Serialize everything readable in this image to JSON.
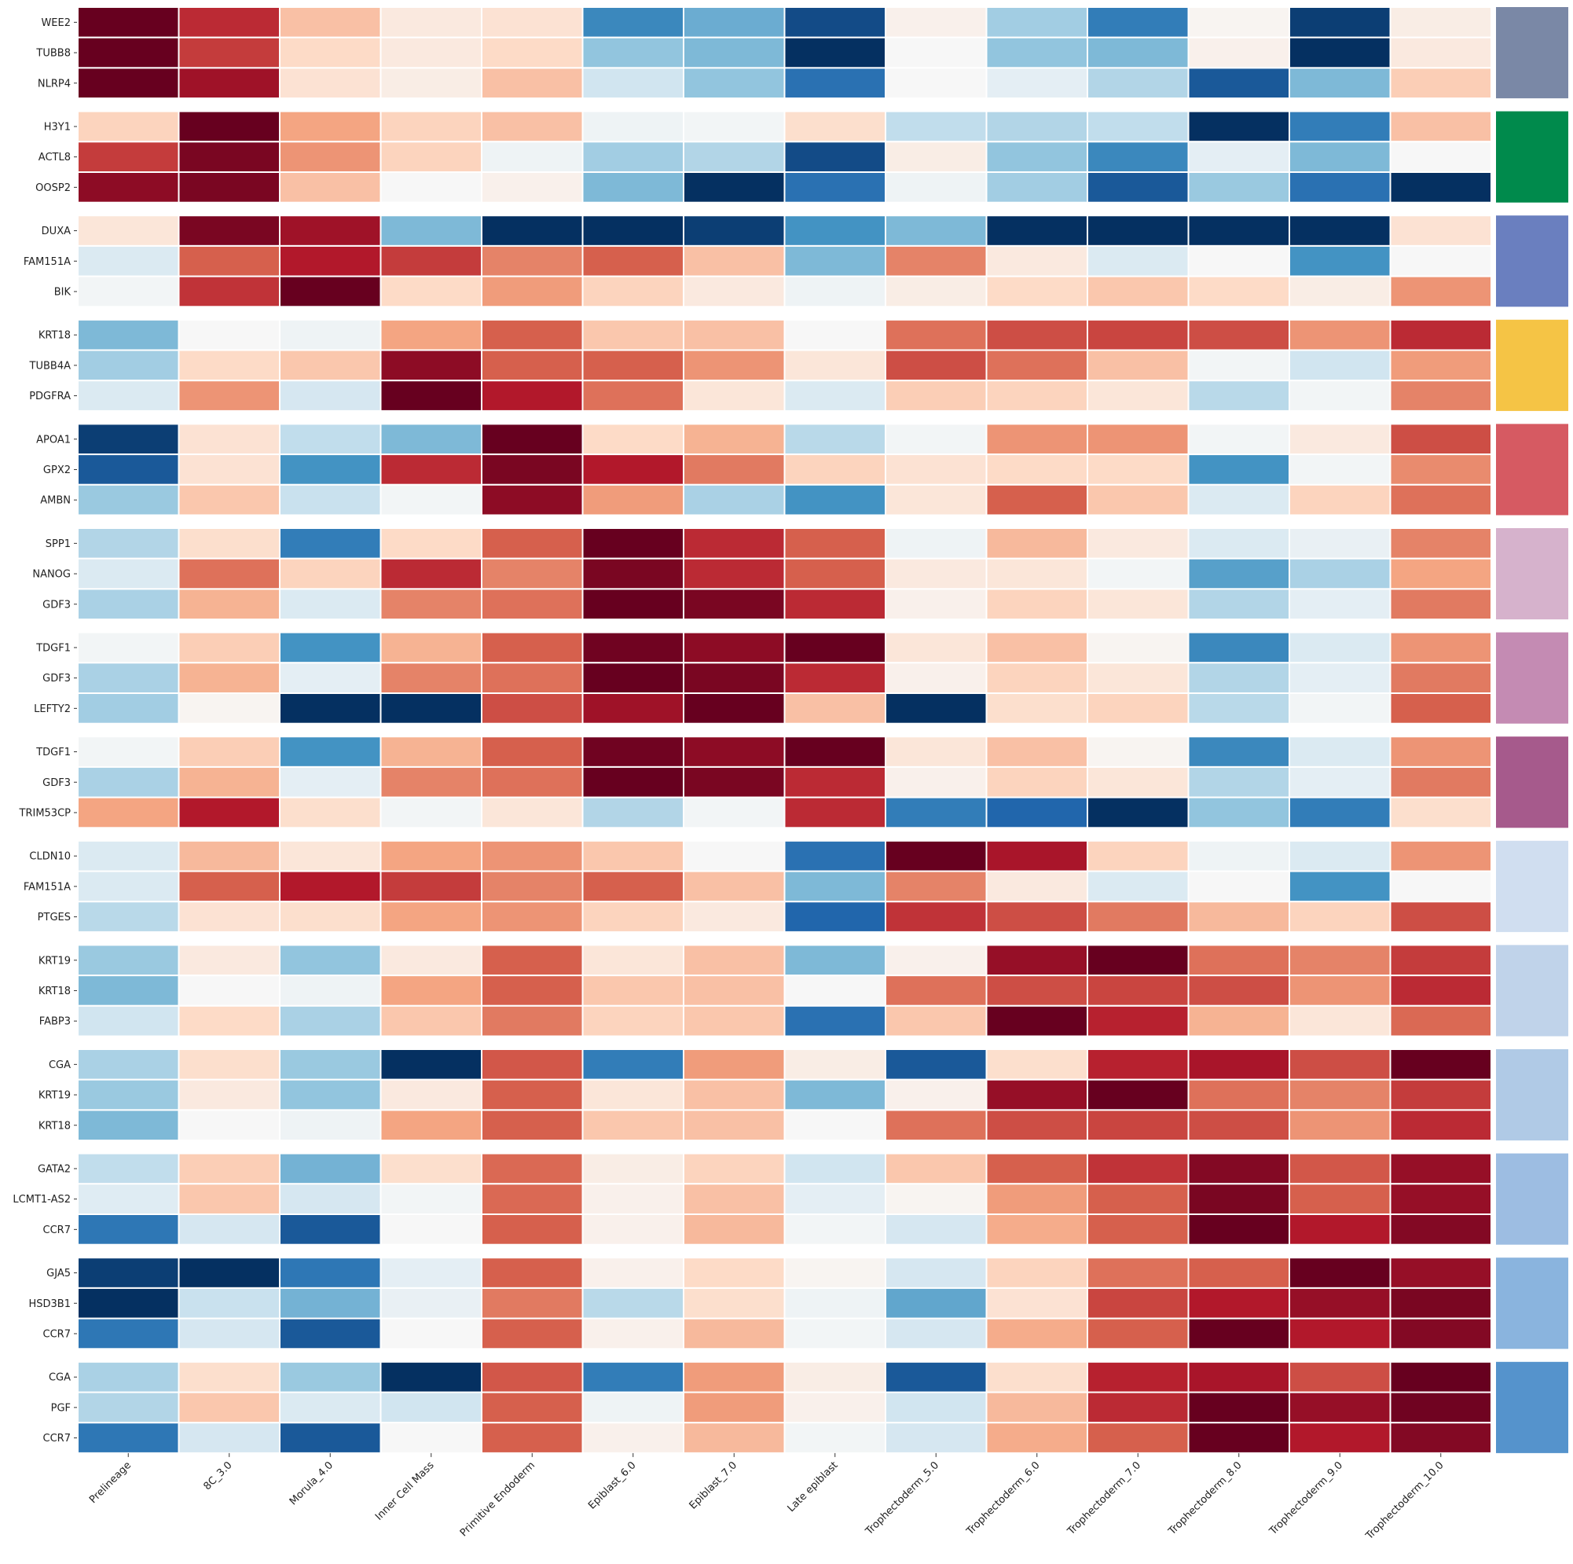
{
  "chart_data": {
    "type": "heatmap",
    "title": "",
    "colormap": "RdBu_r",
    "value_range": [
      -2,
      2
    ],
    "columns": [
      "Prelineage",
      "8C_3.0",
      "Morula_4.0",
      "Inner Cell Mass",
      "Primitive Endoderm",
      "Epiblast_6.0",
      "Epiblast_7.0",
      "Late epiblast",
      "Trophectoderm_5.0",
      "Trophectoderm_6.0",
      "Trophectoderm_7.0",
      "Trophectoderm_8.0",
      "Trophectoderm_9.0",
      "Trophectoderm_10.0"
    ],
    "groups": [
      {
        "color": "#7a88a6",
        "genes": [
          "WEE2",
          "TUBB8",
          "NLRP4"
        ],
        "values": [
          [
            2.0,
            1.5,
            0.6,
            0.2,
            0.3,
            -1.3,
            -1.0,
            -1.8,
            0.1,
            -0.7,
            -1.4,
            0.05,
            -1.9,
            0.15
          ],
          [
            2.0,
            1.4,
            0.4,
            0.2,
            0.4,
            -0.8,
            -0.9,
            -2.0,
            0.0,
            -0.8,
            -0.9,
            0.1,
            -2.0,
            0.2
          ],
          [
            2.0,
            1.7,
            0.3,
            0.15,
            0.6,
            -0.4,
            -0.8,
            -1.5,
            0.0,
            -0.2,
            -0.6,
            -1.7,
            -0.9,
            0.5
          ]
        ]
      },
      {
        "color": "#008a4c",
        "genes": [
          "H3Y1",
          "ACTL8",
          "OOSP2"
        ],
        "values": [
          [
            0.45,
            2.0,
            0.8,
            0.45,
            0.6,
            -0.1,
            -0.05,
            0.35,
            -0.5,
            -0.6,
            -0.5,
            -2.0,
            -1.4,
            0.6
          ],
          [
            1.4,
            1.9,
            0.9,
            0.45,
            -0.1,
            -0.7,
            -0.6,
            -1.8,
            0.15,
            -0.8,
            -1.3,
            -0.2,
            -0.9,
            0.0
          ],
          [
            1.8,
            1.9,
            0.6,
            0.0,
            0.1,
            -0.9,
            -2.0,
            -1.5,
            -0.1,
            -0.7,
            -1.7,
            -0.75,
            -1.5,
            -2.0
          ]
        ]
      },
      {
        "color": "#6a7fbf",
        "genes": [
          "DUXA",
          "FAM151A",
          "BIK"
        ],
        "values": [
          [
            0.25,
            1.9,
            1.7,
            -0.9,
            -2.0,
            -2.0,
            -1.9,
            -1.2,
            -0.9,
            -2.0,
            -2.0,
            -2.0,
            -2.0,
            0.3
          ],
          [
            -0.3,
            1.2,
            1.6,
            1.4,
            1.0,
            1.2,
            0.6,
            -0.9,
            1.0,
            0.2,
            -0.3,
            0.0,
            -1.2,
            0.0
          ],
          [
            -0.05,
            1.45,
            2.0,
            0.4,
            0.85,
            0.45,
            0.2,
            -0.1,
            0.15,
            0.4,
            0.55,
            0.4,
            0.15,
            0.9
          ]
        ]
      },
      {
        "color": "#f5c445",
        "genes": [
          "KRT18",
          "TUBB4A",
          "PDGFRA"
        ],
        "values": [
          [
            -0.9,
            0.0,
            -0.1,
            0.8,
            1.2,
            0.55,
            0.6,
            0.0,
            1.1,
            1.3,
            1.35,
            1.3,
            0.9,
            1.5
          ],
          [
            -0.7,
            0.4,
            0.55,
            1.8,
            1.2,
            1.2,
            0.9,
            0.25,
            1.3,
            1.1,
            0.6,
            -0.05,
            -0.4,
            0.85
          ],
          [
            -0.3,
            0.9,
            -0.35,
            2.0,
            1.6,
            1.1,
            0.25,
            -0.3,
            0.5,
            0.45,
            0.25,
            -0.55,
            -0.05,
            1.0
          ]
        ]
      },
      {
        "color": "#d65a62",
        "genes": [
          "APOA1",
          "GPX2",
          "AMBN"
        ],
        "values": [
          [
            -1.9,
            0.3,
            -0.5,
            -0.9,
            2.0,
            0.4,
            0.7,
            -0.55,
            -0.05,
            0.9,
            0.9,
            -0.05,
            0.2,
            1.3
          ],
          [
            -1.7,
            0.3,
            -1.2,
            1.5,
            1.9,
            1.6,
            1.05,
            0.45,
            0.3,
            0.4,
            0.4,
            -1.2,
            -0.05,
            0.95
          ],
          [
            -0.75,
            0.55,
            -0.45,
            -0.05,
            1.8,
            0.85,
            -0.65,
            -1.2,
            0.25,
            1.2,
            0.55,
            -0.3,
            0.45,
            1.1
          ]
        ]
      },
      {
        "color": "#d6b2cc",
        "genes": [
          "SPP1",
          "NANOG",
          "GDF3"
        ],
        "values": [
          [
            -0.6,
            0.35,
            -1.4,
            0.4,
            1.2,
            2.0,
            1.5,
            1.2,
            -0.1,
            0.65,
            0.2,
            -0.3,
            -0.15,
            1.0
          ],
          [
            -0.3,
            1.1,
            0.45,
            1.5,
            1.0,
            1.9,
            1.5,
            1.2,
            0.2,
            0.25,
            -0.05,
            -1.1,
            -0.65,
            0.8
          ],
          [
            -0.65,
            0.7,
            -0.3,
            1.0,
            1.1,
            2.0,
            1.9,
            1.5,
            0.1,
            0.45,
            0.25,
            -0.6,
            -0.2,
            1.05
          ]
        ]
      },
      {
        "color": "#c48bb3",
        "genes": [
          "TDGF1",
          "GDF3",
          "LEFTY2"
        ],
        "values": [
          [
            -0.05,
            0.5,
            -1.2,
            0.7,
            1.2,
            1.95,
            1.8,
            2.0,
            0.25,
            0.6,
            0.05,
            -1.3,
            -0.3,
            0.9
          ],
          [
            -0.65,
            0.7,
            -0.2,
            1.0,
            1.1,
            2.0,
            1.9,
            1.5,
            0.1,
            0.45,
            0.25,
            -0.6,
            -0.2,
            1.05
          ],
          [
            -0.7,
            0.05,
            -2.0,
            -2.0,
            1.3,
            1.7,
            2.0,
            0.6,
            -2.0,
            0.35,
            0.45,
            -0.55,
            -0.05,
            1.2
          ]
        ]
      },
      {
        "color": "#a65a8c",
        "genes": [
          "TDGF1",
          "GDF3",
          "TRIM53CP"
        ],
        "values": [
          [
            -0.05,
            0.5,
            -1.2,
            0.7,
            1.2,
            1.95,
            1.8,
            2.0,
            0.25,
            0.6,
            0.05,
            -1.3,
            -0.3,
            0.9
          ],
          [
            -0.65,
            0.7,
            -0.2,
            1.0,
            1.1,
            2.0,
            1.9,
            1.5,
            0.1,
            0.45,
            0.25,
            -0.6,
            -0.2,
            1.05
          ],
          [
            0.8,
            1.6,
            0.35,
            -0.05,
            0.25,
            -0.6,
            -0.05,
            1.5,
            -1.4,
            -1.6,
            -2.0,
            -0.8,
            -1.4,
            0.35
          ]
        ]
      },
      {
        "color": "#d0def0",
        "genes": [
          "CLDN10",
          "FAM151A",
          "PTGES"
        ],
        "values": [
          [
            -0.3,
            0.65,
            0.25,
            0.8,
            0.9,
            0.55,
            0.0,
            -1.5,
            2.0,
            1.65,
            0.45,
            -0.1,
            -0.3,
            0.9
          ],
          [
            -0.3,
            1.2,
            1.6,
            1.4,
            1.0,
            1.2,
            0.6,
            -0.9,
            1.0,
            0.2,
            -0.3,
            0.0,
            -1.2,
            0.0
          ],
          [
            -0.55,
            0.3,
            0.35,
            0.8,
            0.9,
            0.45,
            0.2,
            -1.6,
            1.45,
            1.3,
            1.05,
            0.65,
            0.45,
            1.3
          ]
        ]
      },
      {
        "color": "#c0d3ea",
        "genes": [
          "KRT19",
          "KRT18",
          "FABP3"
        ],
        "values": [
          [
            -0.75,
            0.2,
            -0.8,
            0.2,
            1.2,
            0.25,
            0.6,
            -0.9,
            0.1,
            1.75,
            2.0,
            1.1,
            1.0,
            1.4
          ],
          [
            -0.9,
            0.0,
            -0.1,
            0.8,
            1.2,
            0.55,
            0.6,
            0.0,
            1.1,
            1.3,
            1.35,
            1.3,
            0.9,
            1.5
          ],
          [
            -0.4,
            0.4,
            -0.65,
            0.55,
            1.05,
            0.45,
            0.55,
            -1.5,
            0.55,
            2.0,
            1.55,
            0.7,
            0.25,
            1.15
          ]
        ]
      },
      {
        "color": "#b0cae6",
        "genes": [
          "CGA",
          "KRT19",
          "KRT18"
        ],
        "values": [
          [
            -0.65,
            0.35,
            -0.75,
            -2.0,
            1.25,
            -1.4,
            0.85,
            0.15,
            -1.7,
            0.35,
            1.55,
            1.65,
            1.3,
            2.0
          ],
          [
            -0.75,
            0.2,
            -0.8,
            0.2,
            1.2,
            0.25,
            0.6,
            -0.9,
            0.1,
            1.75,
            2.0,
            1.1,
            1.0,
            1.4
          ],
          [
            -0.9,
            0.0,
            -0.1,
            0.8,
            1.2,
            0.55,
            0.6,
            0.0,
            1.1,
            1.3,
            1.35,
            1.3,
            0.9,
            1.5
          ]
        ]
      },
      {
        "color": "#9dbde2",
        "genes": [
          "GATA2",
          "LCMT1-AS2",
          "CCR7"
        ],
        "values": [
          [
            -0.5,
            0.5,
            -0.95,
            0.35,
            1.15,
            0.15,
            0.45,
            -0.4,
            0.55,
            1.2,
            1.45,
            1.85,
            1.25,
            1.75
          ],
          [
            -0.25,
            0.55,
            -0.35,
            -0.05,
            1.15,
            0.1,
            0.6,
            -0.2,
            0.05,
            0.85,
            1.2,
            1.9,
            1.2,
            1.75
          ],
          [
            -1.45,
            -0.35,
            -1.7,
            0.0,
            1.2,
            0.1,
            0.65,
            -0.05,
            -0.35,
            0.75,
            1.2,
            2.0,
            1.6,
            1.85
          ]
        ]
      },
      {
        "color": "#8ab4de",
        "genes": [
          "GJA5",
          "HSD3B1",
          "CCR7"
        ],
        "values": [
          [
            -1.9,
            -2.0,
            -1.45,
            -0.2,
            1.2,
            0.1,
            0.4,
            0.05,
            -0.35,
            0.45,
            1.1,
            1.2,
            2.0,
            1.75
          ],
          [
            -2.0,
            -0.45,
            -0.95,
            -0.15,
            1.05,
            -0.55,
            0.35,
            -0.1,
            -1.05,
            0.3,
            1.35,
            1.6,
            1.75,
            1.9
          ],
          [
            -1.45,
            -0.35,
            -1.7,
            0.0,
            1.2,
            0.1,
            0.65,
            -0.05,
            -0.35,
            0.75,
            1.2,
            2.0,
            1.6,
            1.85
          ]
        ]
      },
      {
        "color": "#5593cc",
        "genes": [
          "CGA",
          "PGF",
          "CCR7"
        ],
        "values": [
          [
            -0.65,
            0.35,
            -0.75,
            -2.0,
            1.25,
            -1.4,
            0.85,
            0.15,
            -1.7,
            0.35,
            1.55,
            1.65,
            1.3,
            2.0
          ],
          [
            -0.6,
            0.55,
            -0.3,
            -0.4,
            1.2,
            -0.1,
            0.85,
            0.1,
            -0.4,
            0.65,
            1.5,
            2.0,
            1.75,
            1.95
          ],
          [
            -1.45,
            -0.35,
            -1.7,
            0.0,
            1.2,
            0.1,
            0.65,
            -0.05,
            -0.35,
            0.75,
            1.2,
            2.0,
            1.6,
            1.85
          ]
        ]
      }
    ]
  }
}
